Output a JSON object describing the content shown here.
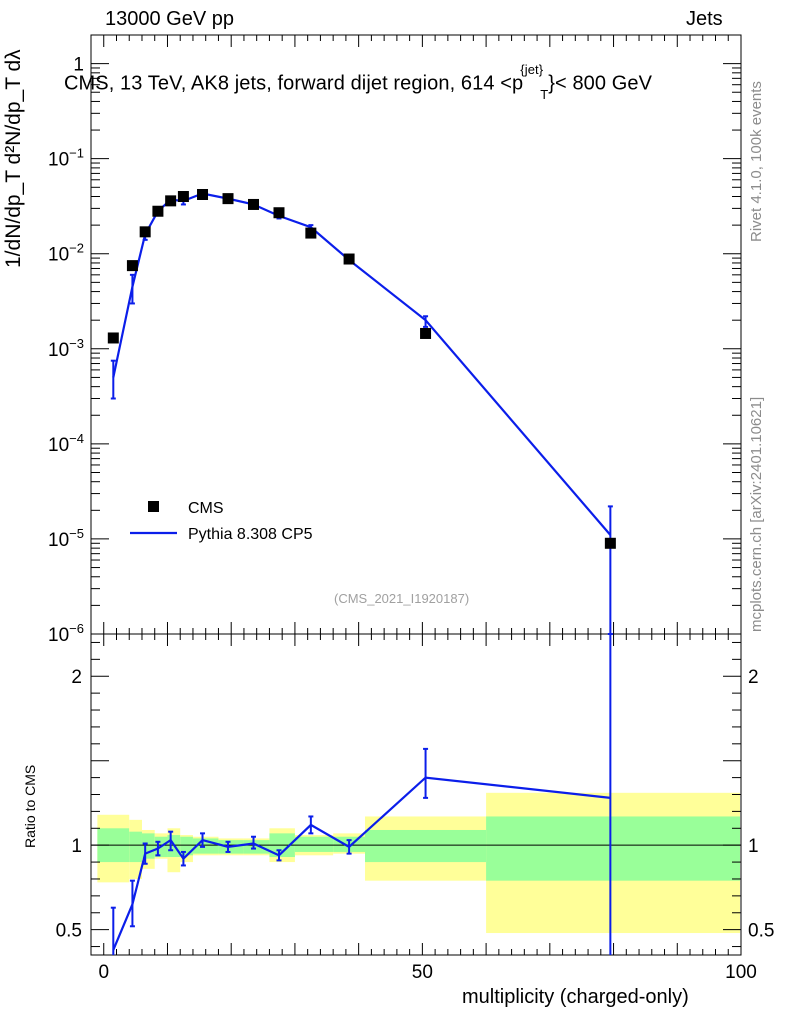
{
  "header": {
    "left": "13000 GeV pp",
    "right": "Jets"
  },
  "plot_title": {
    "prefix": "CMS, 13 TeV, AK8 jets, forward dijet region, 614 <p",
    "sup": "{jet}",
    "sub": "T",
    "suffix": "}< 800 GeV"
  },
  "side_text": {
    "rivet": "Rivet 4.1.0,  100k events",
    "mcplots": "mcplots.cern.ch [arXiv:2401.10621]"
  },
  "watermark": "(CMS_2021_I1920187)",
  "y_axis_label": "1/dN/dp_T  d²N/dp_T dλ",
  "colors": {
    "mc": "#0b1eea",
    "band_green": "#99ff99",
    "band_yellow": "#ffff99",
    "data": "#000000"
  },
  "chart_data": [
    {
      "type": "scatter",
      "title": "CMS, 13 TeV, AK8 jets, forward dijet region, 614 <p_T^{jet}< 800 GeV",
      "xlabel": "multiplicity (charged-only)",
      "ylabel": "1/(dN/dp_T) d²N/(dp_T dλ)",
      "xlim": [
        -2,
        100
      ],
      "ylim": [
        1e-06,
        2
      ],
      "yscale": "log",
      "x_ticks": [
        0,
        50,
        100
      ],
      "y_ticks": [
        "1",
        "10^{-1}",
        "10^{-2}",
        "10^{-3}",
        "10^{-4}",
        "10^{-5}",
        "10^{-6}"
      ],
      "legend": {
        "position": "bottom-left",
        "entries": [
          "CMS",
          "Pythia 8.308 CP5"
        ]
      },
      "series": [
        {
          "name": "CMS",
          "style": "markers",
          "x": [
            1.5,
            4.5,
            6.5,
            8.5,
            10.5,
            12.5,
            15.5,
            19.5,
            23.5,
            27.5,
            32.5,
            38.5,
            50.5,
            79.5
          ],
          "y": [
            0.0013,
            0.0075,
            0.017,
            0.028,
            0.036,
            0.04,
            0.042,
            0.038,
            0.033,
            0.027,
            0.0165,
            0.0088,
            0.00145,
            9e-06
          ]
        },
        {
          "name": "Pythia 8.308 CP5",
          "style": "line",
          "x": [
            1.5,
            4.5,
            6.5,
            8.5,
            10.5,
            12.5,
            15.5,
            19.5,
            23.5,
            27.5,
            32.5,
            38.5,
            50.5,
            79.5
          ],
          "y": [
            0.0005,
            0.0045,
            0.016,
            0.028,
            0.037,
            0.036,
            0.043,
            0.038,
            0.033,
            0.025,
            0.019,
            0.0086,
            0.002,
            1.1e-05
          ],
          "y_err_low": [
            0.0003,
            0.003,
            0.014,
            0.026,
            0.035,
            0.033,
            0.041,
            0.036,
            0.031,
            0.0235,
            0.018,
            0.0082,
            0.0017,
            1e-07
          ],
          "y_err_high": [
            0.00075,
            0.006,
            0.018,
            0.03,
            0.039,
            0.039,
            0.045,
            0.04,
            0.035,
            0.0265,
            0.02,
            0.009,
            0.0022,
            2.2e-05
          ]
        }
      ]
    },
    {
      "type": "line",
      "ylabel": "Ratio to CMS",
      "xlabel": "multiplicity (charged-only)",
      "xlim": [
        -2,
        100
      ],
      "ylim": [
        0.35,
        2.25
      ],
      "y_ticks": [
        0.5,
        1,
        2
      ],
      "bands": {
        "bin_edges": [
          -1,
          4,
          6,
          8,
          10,
          12,
          14,
          18,
          22,
          26,
          30,
          36,
          41,
          60,
          100
        ],
        "green_low": [
          0.9,
          0.9,
          0.92,
          0.93,
          0.93,
          0.94,
          0.95,
          0.95,
          0.95,
          0.93,
          0.96,
          0.96,
          0.9,
          0.79
        ],
        "green_high": [
          1.1,
          1.08,
          1.07,
          1.05,
          1.06,
          1.05,
          1.04,
          1.03,
          1.03,
          1.07,
          1.05,
          1.05,
          1.09,
          1.17
        ],
        "yellow_low": [
          0.78,
          0.8,
          0.86,
          0.92,
          0.84,
          0.9,
          0.94,
          0.94,
          0.94,
          0.9,
          0.94,
          0.95,
          0.79,
          0.48
        ],
        "yellow_high": [
          1.18,
          1.15,
          1.09,
          1.07,
          1.1,
          1.06,
          1.05,
          1.04,
          1.04,
          1.1,
          1.06,
          1.07,
          1.17,
          1.31
        ]
      },
      "series": [
        {
          "name": "Pythia 8.308 CP5 / CMS",
          "x": [
            1.5,
            4.5,
            6.5,
            8.5,
            10.5,
            12.5,
            15.5,
            19.5,
            23.5,
            27.5,
            32.5,
            38.5,
            50.5,
            79.5
          ],
          "y": [
            0.38,
            0.65,
            0.95,
            0.98,
            1.03,
            0.92,
            1.03,
            0.99,
            1.01,
            0.94,
            1.12,
            0.99,
            1.4,
            1.28
          ],
          "y_err_low": [
            0.22,
            0.52,
            0.89,
            0.94,
            0.97,
            0.88,
            0.99,
            0.96,
            0.98,
            0.91,
            1.07,
            0.95,
            1.28,
            0.1
          ],
          "y_err_high": [
            0.63,
            0.79,
            1.01,
            1.02,
            1.08,
            0.96,
            1.07,
            1.02,
            1.05,
            0.97,
            1.17,
            1.03,
            1.57,
            2.3
          ]
        }
      ]
    }
  ]
}
